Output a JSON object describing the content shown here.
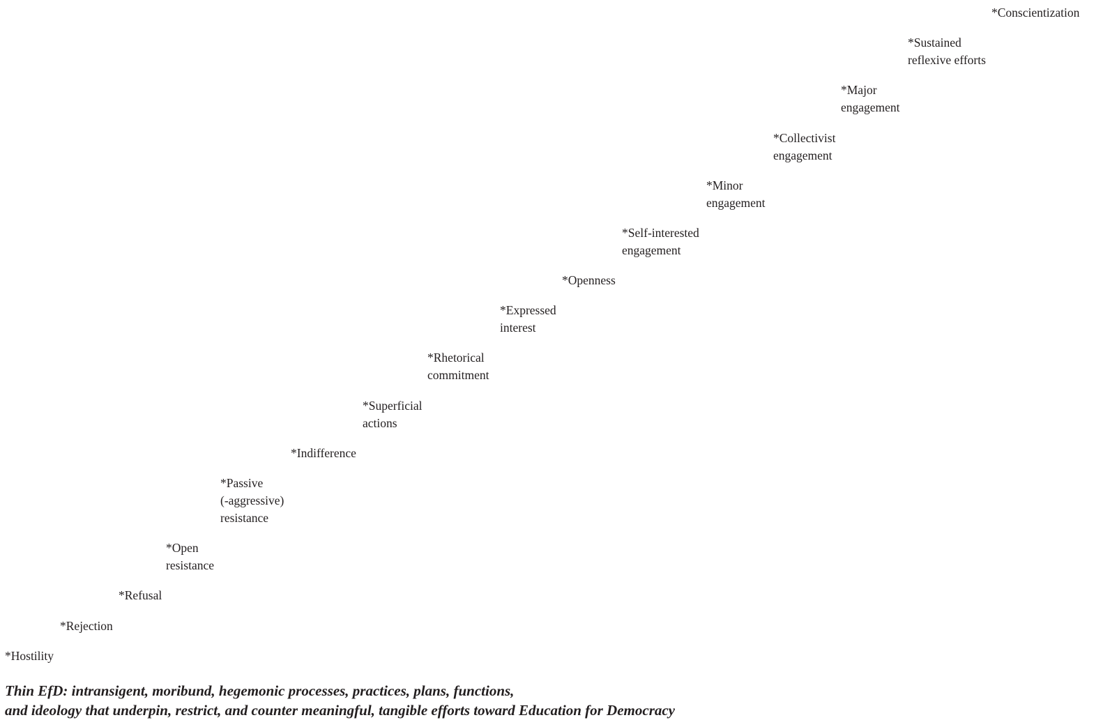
{
  "steps": [
    [
      "*Hostility"
    ],
    [
      "*Rejection"
    ],
    [
      "*Refusal"
    ],
    [
      "*Open",
      "resistance"
    ],
    [
      "*Passive",
      "(-aggressive)",
      "resistance"
    ],
    [
      "*Indifference"
    ],
    [
      "*Superficial",
      "actions"
    ],
    [
      "*Rhetorical",
      "commitment"
    ],
    [
      "*Expressed",
      "interest"
    ],
    [
      "*Openness"
    ],
    [
      "*Self-interested",
      "engagement"
    ],
    [
      "*Minor",
      "engagement"
    ],
    [
      "*Collectivist",
      "engagement"
    ],
    [
      "*Major",
      "engagement"
    ],
    [
      "*Sustained",
      "reflexive efforts"
    ],
    [
      "*Conscientization"
    ]
  ],
  "caption": {
    "line1": "Thin EfD: intransigent, moribund, hegemonic processes, practices, plans, functions,",
    "line2": "and ideology that underpin, restrict, and counter meaningful, tangible efforts toward Education for Democracy"
  }
}
